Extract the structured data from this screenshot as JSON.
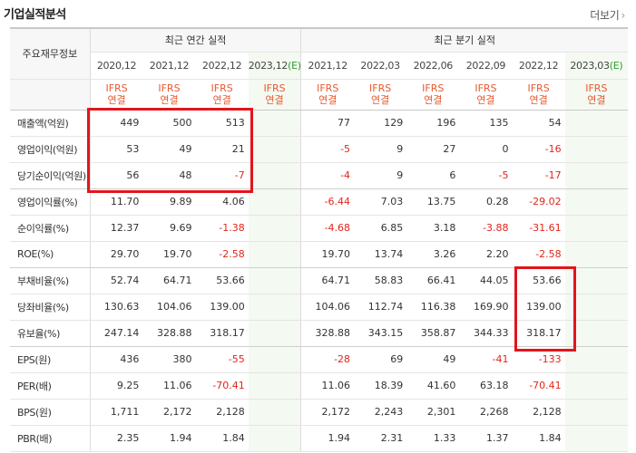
{
  "title": "기업실적분석",
  "more_label": "더보기",
  "more_arrow": "›",
  "row_header": "주요재무정보",
  "groups": {
    "annual": "최근 연간 실적",
    "quarterly": "최근 분기 실적"
  },
  "periods": [
    {
      "label": "2020,12",
      "est": ""
    },
    {
      "label": "2021,12",
      "est": ""
    },
    {
      "label": "2022,12",
      "est": ""
    },
    {
      "label": "2023,12",
      "est": "(E)"
    },
    {
      "label": "2021,12",
      "est": ""
    },
    {
      "label": "2022,03",
      "est": ""
    },
    {
      "label": "2022,06",
      "est": ""
    },
    {
      "label": "2022,09",
      "est": ""
    },
    {
      "label": "2022,12",
      "est": ""
    },
    {
      "label": "2023,03",
      "est": "(E)"
    }
  ],
  "basis_top": "IFRS",
  "basis_bottom": "연결",
  "rows": [
    {
      "label": "매출액(억원)",
      "values": [
        "449",
        "500",
        "513",
        "",
        "77",
        "129",
        "196",
        "135",
        "54",
        ""
      ]
    },
    {
      "label": "영업이익(억원)",
      "values": [
        "53",
        "49",
        "21",
        "",
        "-5",
        "9",
        "27",
        "0",
        "-16",
        ""
      ]
    },
    {
      "label": "당기순이익(억원)",
      "values": [
        "56",
        "48",
        "-7",
        "",
        "-4",
        "9",
        "6",
        "-5",
        "-17",
        ""
      ]
    },
    {
      "label": "영업이익률(%)",
      "values": [
        "11.70",
        "9.89",
        "4.06",
        "",
        "-6.44",
        "7.03",
        "13.75",
        "0.28",
        "-29.02",
        ""
      ]
    },
    {
      "label": "순이익률(%)",
      "values": [
        "12.37",
        "9.69",
        "-1.38",
        "",
        "-4.68",
        "6.85",
        "3.18",
        "-3.88",
        "-31.61",
        ""
      ]
    },
    {
      "label": "ROE(%)",
      "values": [
        "29.70",
        "19.70",
        "-2.58",
        "",
        "19.70",
        "13.74",
        "3.26",
        "2.20",
        "-2.58",
        ""
      ]
    },
    {
      "label": "부채비율(%)",
      "values": [
        "52.74",
        "64.71",
        "53.66",
        "",
        "64.71",
        "58.83",
        "66.41",
        "44.05",
        "53.66",
        ""
      ]
    },
    {
      "label": "당좌비율(%)",
      "values": [
        "130.63",
        "104.06",
        "139.00",
        "",
        "104.06",
        "112.74",
        "116.38",
        "169.90",
        "139.00",
        ""
      ]
    },
    {
      "label": "유보율(%)",
      "values": [
        "247.14",
        "328.88",
        "318.17",
        "",
        "328.88",
        "343.15",
        "358.87",
        "344.33",
        "318.17",
        ""
      ]
    },
    {
      "label": "EPS(원)",
      "values": [
        "436",
        "380",
        "-55",
        "",
        "-28",
        "69",
        "49",
        "-41",
        "-133",
        ""
      ]
    },
    {
      "label": "PER(배)",
      "values": [
        "9.25",
        "11.06",
        "-70.41",
        "",
        "11.06",
        "18.39",
        "41.60",
        "63.18",
        "-70.41",
        ""
      ]
    },
    {
      "label": "BPS(원)",
      "values": [
        "1,711",
        "2,172",
        "2,128",
        "",
        "2,172",
        "2,243",
        "2,301",
        "2,268",
        "2,128",
        ""
      ]
    },
    {
      "label": "PBR(배)",
      "values": [
        "2.35",
        "1.94",
        "1.84",
        "",
        "1.94",
        "2.31",
        "1.33",
        "1.37",
        "1.84",
        ""
      ]
    }
  ],
  "colors": {
    "negative": "#e2261a",
    "basis": "#e8592e",
    "estimate": "#2e9d2e",
    "highlight": "#e4141c"
  }
}
